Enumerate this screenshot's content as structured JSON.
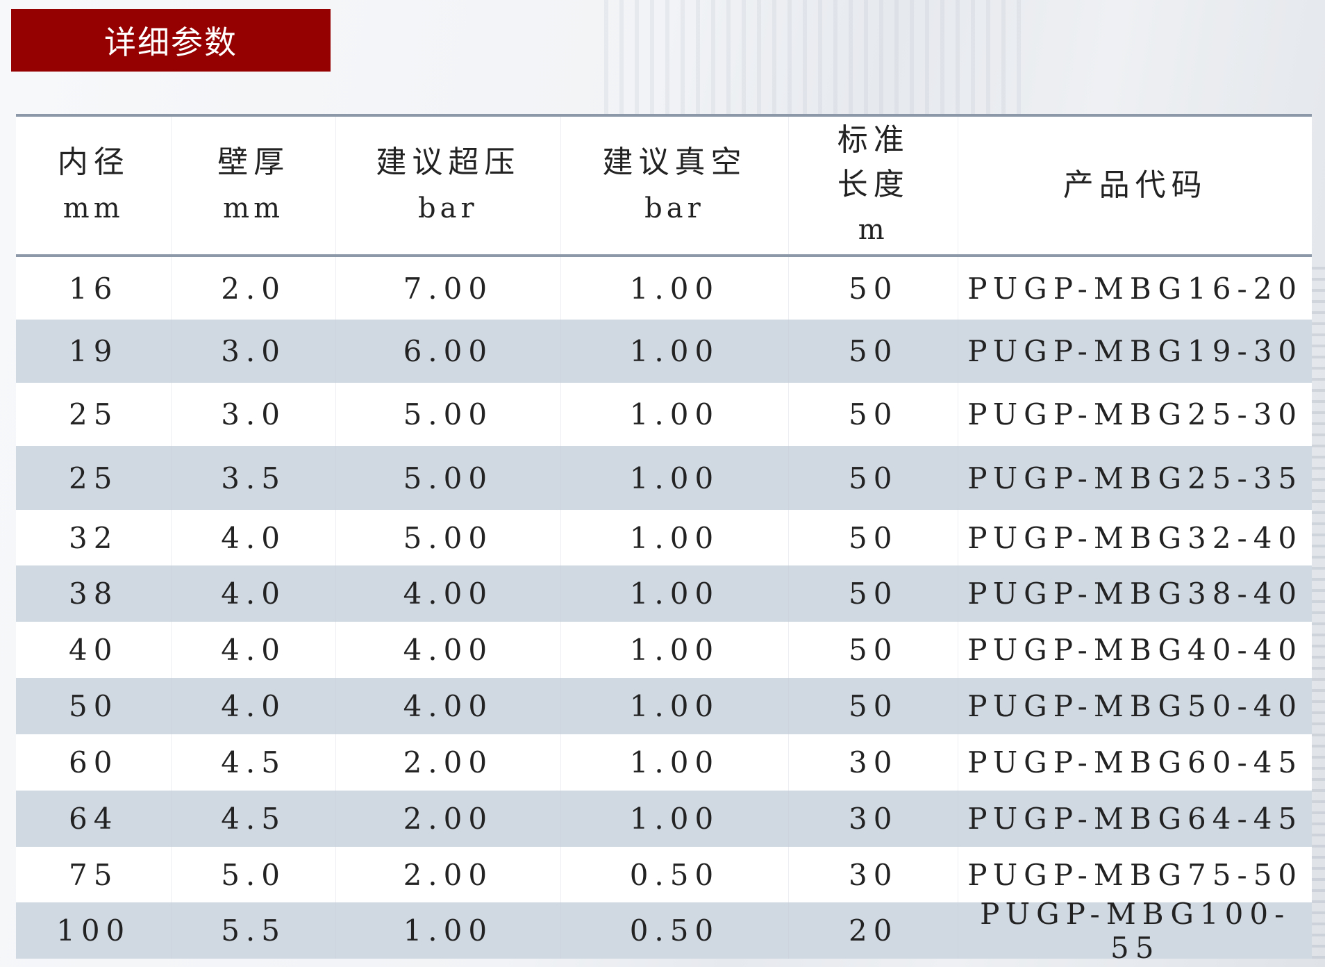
{
  "title": "详细参数",
  "colors": {
    "banner": "#950000",
    "band": "#d0d8e2",
    "rule": "#8c98a8"
  },
  "headers": [
    {
      "label": "内径",
      "unit": "mm"
    },
    {
      "label": "壁厚",
      "unit": "mm"
    },
    {
      "label": "建议超压",
      "unit": "bar"
    },
    {
      "label": "建议真空",
      "unit": "bar"
    },
    {
      "label": "标准长度",
      "label_lines": [
        "标准",
        "长度"
      ],
      "unit": "m"
    },
    {
      "label": "产品代码",
      "unit": ""
    }
  ],
  "rows": [
    [
      "16",
      "2.0",
      "7.00",
      "1.00",
      "50",
      "PUGP-MBG16-20"
    ],
    [
      "19",
      "3.0",
      "6.00",
      "1.00",
      "50",
      "PUGP-MBG19-30"
    ],
    [
      "25",
      "3.0",
      "5.00",
      "1.00",
      "50",
      "PUGP-MBG25-30"
    ],
    [
      "25",
      "3.5",
      "5.00",
      "1.00",
      "50",
      "PUGP-MBG25-35"
    ],
    [
      "32",
      "4.0",
      "5.00",
      "1.00",
      "50",
      "PUGP-MBG32-40"
    ],
    [
      "38",
      "4.0",
      "4.00",
      "1.00",
      "50",
      "PUGP-MBG38-40"
    ],
    [
      "40",
      "4.0",
      "4.00",
      "1.00",
      "50",
      "PUGP-MBG40-40"
    ],
    [
      "50",
      "4.0",
      "4.00",
      "1.00",
      "50",
      "PUGP-MBG50-40"
    ],
    [
      "60",
      "4.5",
      "2.00",
      "1.00",
      "30",
      "PUGP-MBG60-45"
    ],
    [
      "64",
      "4.5",
      "2.00",
      "1.00",
      "30",
      "PUGP-MBG64-45"
    ],
    [
      "75",
      "5.0",
      "2.00",
      "0.50",
      "30",
      "PUGP-MBG75-50"
    ],
    [
      "100",
      "5.5",
      "1.00",
      "0.50",
      "20",
      "PUGP-MBG100-55"
    ]
  ]
}
